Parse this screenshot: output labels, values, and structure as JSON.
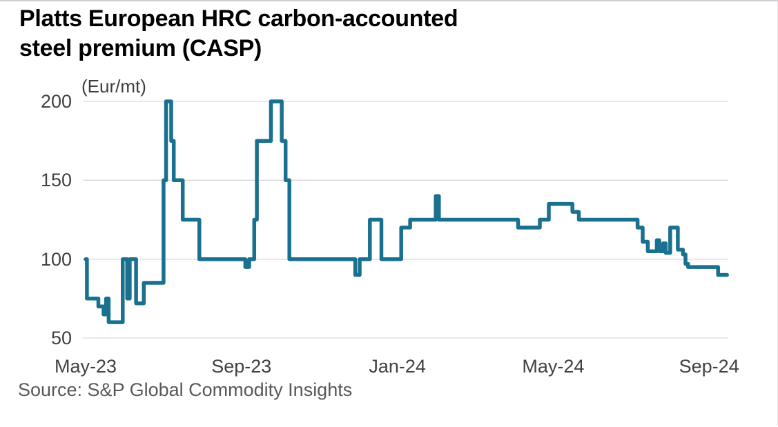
{
  "header": {
    "title_line1": "Platts European HRC carbon-accounted",
    "title_line2": "steel premium (CASP)"
  },
  "footer": {
    "source": "Source: S&P Global Commodity Insights"
  },
  "chart_data": {
    "type": "line",
    "step": true,
    "title": "Platts European HRC carbon-accounted steel premium (CASP)",
    "unit_label": "(Eur/mt)",
    "series_name": "Platts European HRC carbon-accounted steel premium",
    "xlabel": "",
    "ylabel": "(Eur/mt)",
    "ylim": [
      50,
      200
    ],
    "grid": "horizontal",
    "legend": "none",
    "line_color": "#19708F",
    "grid_color": "#d9d9d9",
    "label_color": "#414141",
    "yticks": [
      {
        "value": 200,
        "label": "200"
      },
      {
        "value": 150,
        "label": "150"
      },
      {
        "value": 100,
        "label": "100"
      },
      {
        "value": 50,
        "label": "50"
      }
    ],
    "xticks": [
      {
        "date": "2023-05-01",
        "label": "May-23"
      },
      {
        "date": "2023-09-01",
        "label": "Sep-23"
      },
      {
        "date": "2024-01-01",
        "label": "Jan-24"
      },
      {
        "date": "2024-05-01",
        "label": "May-24"
      },
      {
        "date": "2024-09-01",
        "label": "Sep-24"
      }
    ],
    "x_start": "2023-05-01",
    "x_end": "2024-09-15",
    "points": [
      [
        "2023-05-01",
        100
      ],
      [
        "2023-05-02",
        75
      ],
      [
        "2023-05-11",
        70
      ],
      [
        "2023-05-15",
        65
      ],
      [
        "2023-05-17",
        75
      ],
      [
        "2023-05-19",
        60
      ],
      [
        "2023-05-30",
        100
      ],
      [
        "2023-06-03",
        75
      ],
      [
        "2023-06-05",
        100
      ],
      [
        "2023-06-10",
        72
      ],
      [
        "2023-06-16",
        85
      ],
      [
        "2023-07-01",
        150
      ],
      [
        "2023-07-03",
        200
      ],
      [
        "2023-07-07",
        175
      ],
      [
        "2023-07-09",
        150
      ],
      [
        "2023-07-16",
        125
      ],
      [
        "2023-07-29",
        100
      ],
      [
        "2023-09-04",
        95
      ],
      [
        "2023-09-07",
        100
      ],
      [
        "2023-09-11",
        125
      ],
      [
        "2023-09-13",
        175
      ],
      [
        "2023-09-24",
        200
      ],
      [
        "2023-10-02",
        175
      ],
      [
        "2023-10-05",
        150
      ],
      [
        "2023-10-08",
        100
      ],
      [
        "2023-11-29",
        90
      ],
      [
        "2023-12-02",
        100
      ],
      [
        "2023-12-10",
        125
      ],
      [
        "2023-12-19",
        100
      ],
      [
        "2024-01-04",
        120
      ],
      [
        "2024-01-11",
        125
      ],
      [
        "2024-01-31",
        140
      ],
      [
        "2024-02-03",
        125
      ],
      [
        "2024-04-04",
        120
      ],
      [
        "2024-04-21",
        125
      ],
      [
        "2024-04-28",
        135
      ],
      [
        "2024-05-16",
        130
      ],
      [
        "2024-05-21",
        125
      ],
      [
        "2024-07-06",
        120
      ],
      [
        "2024-07-10",
        111
      ],
      [
        "2024-07-14",
        105
      ],
      [
        "2024-07-21",
        112
      ],
      [
        "2024-07-23",
        105
      ],
      [
        "2024-07-26",
        110
      ],
      [
        "2024-07-28",
        104
      ],
      [
        "2024-08-01",
        120
      ],
      [
        "2024-08-07",
        106
      ],
      [
        "2024-08-11",
        103
      ],
      [
        "2024-08-13",
        97
      ],
      [
        "2024-08-15",
        95
      ],
      [
        "2024-09-08",
        90
      ]
    ]
  }
}
